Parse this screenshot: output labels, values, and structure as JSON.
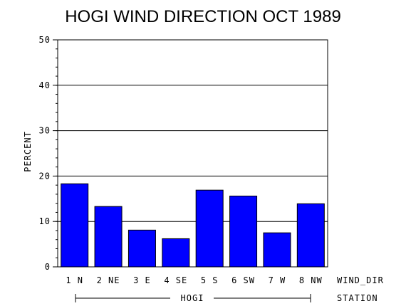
{
  "chart_data": {
    "type": "bar",
    "title": "HOGI WIND DIRECTION OCT 1989",
    "ylabel": "PERCENT",
    "xlabel": "WIND_DIR",
    "group_axis_label": "STATION",
    "group_label": "HOGI",
    "categories": [
      "1  N",
      "2  NE",
      "3  E",
      "4  SE",
      "5  S",
      "6  SW",
      "7  W",
      "8  NW"
    ],
    "values": [
      18.3,
      13.3,
      8.1,
      6.2,
      16.9,
      15.6,
      7.5,
      13.9
    ],
    "ylim": [
      0,
      50
    ],
    "yticks": [
      "0",
      "10",
      "20",
      "30",
      "40",
      "50"
    ],
    "grid": true,
    "bar_color": "#0000ff"
  }
}
